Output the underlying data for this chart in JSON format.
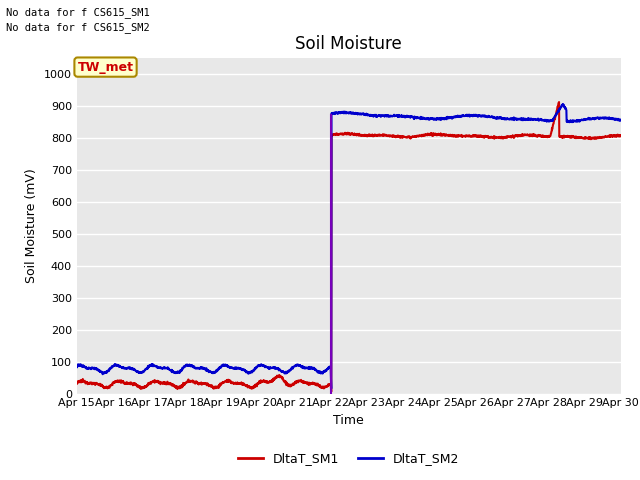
{
  "title": "Soil Moisture",
  "xlabel": "Time",
  "ylabel": "Soil Moisture (mV)",
  "ylim": [
    0,
    1050
  ],
  "yticks": [
    0,
    100,
    200,
    300,
    400,
    500,
    600,
    700,
    800,
    900,
    1000
  ],
  "x_tick_labels": [
    "Apr 15",
    "Apr 16",
    "Apr 17",
    "Apr 18",
    "Apr 19",
    "Apr 20",
    "Apr 21",
    "Apr 22",
    "Apr 23",
    "Apr 24",
    "Apr 25",
    "Apr 26",
    "Apr 27",
    "Apr 28",
    "Apr 29",
    "Apr 30"
  ],
  "color_sm1": "#cc0000",
  "color_sm2": "#0000cc",
  "color_purple": "#7700bb",
  "no_data_text1": "No data for f CS615_SM1",
  "no_data_text2": "No data for f CS615_SM2",
  "tw_met_label": "TW_met",
  "tw_met_bg": "#ffffcc",
  "tw_met_border": "#aa8800",
  "legend_sm1": "DltaT_SM1",
  "legend_sm2": "DltaT_SM2",
  "bg_color": "#e8e8e8",
  "title_fontsize": 12,
  "axis_fontsize": 9,
  "tick_fontsize": 8,
  "linewidth": 1.5
}
